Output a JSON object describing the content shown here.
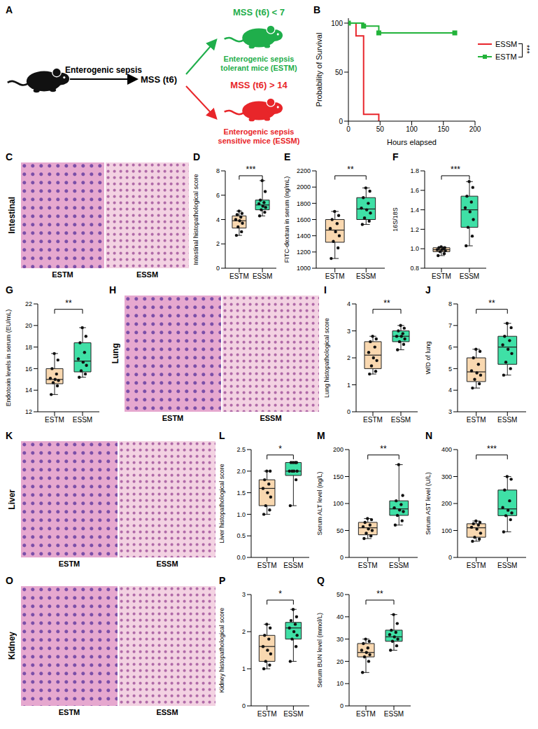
{
  "diagram": {
    "panel": "A",
    "start_label": "Enterogenic sepsis",
    "score_label": "MSS (t6)",
    "outcomes": [
      {
        "criterion": "MSS (t6) < 7",
        "name_lines": [
          "Enterogenic sepsis",
          "tolerant mice (ESTM)"
        ],
        "color": "#1fae4b"
      },
      {
        "criterion": "MSS (t6) > 14",
        "name_lines": [
          "Enterogenic sepsis",
          "sensitive mice (ESSM)"
        ],
        "color": "#e8262a"
      }
    ]
  },
  "images": [
    {
      "panel": "C",
      "tissue": "Intestinal",
      "captions": [
        "ESTM",
        "ESSM"
      ]
    },
    {
      "panel": "H",
      "tissue": "Lung",
      "captions": [
        "ESTM",
        "ESSM"
      ]
    },
    {
      "panel": "K",
      "tissue": "Liver",
      "captions": [
        "ESTM",
        "ESSM"
      ]
    },
    {
      "panel": "O",
      "tissue": "Kidney",
      "captions": [
        "ESTM",
        "ESSM"
      ]
    }
  ],
  "chart_data": [
    {
      "panel": "B",
      "type": "line",
      "x_label": "Hours elapsed",
      "y_label": "Probability of Survival",
      "xlim": [
        0,
        200
      ],
      "xticks": [
        0,
        50,
        100,
        150,
        200
      ],
      "ylim": [
        0,
        105
      ],
      "yticks": [
        0,
        50,
        100
      ],
      "legend": "right",
      "significance": "***",
      "series": [
        {
          "name": "ESSM",
          "color": "#e8252b",
          "line_style": "step",
          "x": [
            0,
            12,
            24,
            48
          ],
          "values": [
            100,
            87,
            7,
            0
          ]
        },
        {
          "name": "ESTM",
          "color": "#22b33a",
          "line_style": "step",
          "marker": "square",
          "x": [
            0,
            24,
            48,
            168
          ],
          "values": [
            100,
            97,
            90,
            90
          ]
        }
      ]
    },
    {
      "panel": "D",
      "type": "box",
      "y_label": "Intestinal histopathological score",
      "ylim": [
        0,
        8
      ],
      "yticks": [
        0,
        2,
        4,
        6,
        8
      ],
      "significance": "***",
      "groups": [
        {
          "name": "ESTM",
          "color": "#f9d8b0",
          "min": 2.7,
          "q1": 3.3,
          "median": 3.9,
          "q3": 4.3,
          "max": 4.7,
          "points": [
            2.7,
            3.0,
            3.4,
            3.7,
            3.9,
            4.0,
            4.2,
            4.4,
            4.5,
            4.7
          ]
        },
        {
          "name": "ESSM",
          "color": "#3fe0a6",
          "min": 4.3,
          "q1": 4.8,
          "median": 5.2,
          "q3": 5.6,
          "max": 7.2,
          "points": [
            4.3,
            4.6,
            4.8,
            5.0,
            5.1,
            5.3,
            5.4,
            5.6,
            6.3,
            7.2
          ]
        }
      ]
    },
    {
      "panel": "E",
      "type": "box",
      "y_label": "FITC-dextran in serum (ng/mL)",
      "ylim": [
        1000,
        2200
      ],
      "yticks": [
        1000,
        1200,
        1400,
        1600,
        1800,
        2000,
        2200
      ],
      "significance": "**",
      "groups": [
        {
          "name": "ESTM",
          "color": "#f9d8b0",
          "min": 1120,
          "q1": 1320,
          "median": 1470,
          "q3": 1600,
          "max": 1700,
          "points": [
            1120,
            1250,
            1330,
            1400,
            1450,
            1490,
            1550,
            1600,
            1650,
            1700
          ]
        },
        {
          "name": "ESSM",
          "color": "#3fe0a6",
          "min": 1540,
          "q1": 1600,
          "median": 1730,
          "q3": 1870,
          "max": 1990,
          "points": [
            1540,
            1580,
            1620,
            1680,
            1720,
            1740,
            1800,
            1870,
            1950,
            1990
          ]
        }
      ]
    },
    {
      "panel": "F",
      "type": "box",
      "y_label": "16S/18S",
      "ylim": [
        0.8,
        1.8
      ],
      "yticks": [
        0.8,
        {
          "value": 1,
          "label": "1.0"
        },
        1.2,
        1.4,
        1.6,
        1.8
      ],
      "significance": "***",
      "groups": [
        {
          "name": "ESTM",
          "color": "#f9d8b0",
          "min": 0.93,
          "q1": 0.97,
          "median": 0.99,
          "q3": 1.01,
          "max": 1.02,
          "points": [
            0.93,
            0.95,
            0.97,
            0.98,
            0.99,
            0.99,
            1.0,
            1.01,
            1.01,
            1.02
          ]
        },
        {
          "name": "ESSM",
          "color": "#3fe0a6",
          "min": 1.03,
          "q1": 1.22,
          "median": 1.4,
          "q3": 1.54,
          "max": 1.69,
          "points": [
            1.03,
            1.13,
            1.22,
            1.3,
            1.38,
            1.42,
            1.48,
            1.54,
            1.63,
            1.69
          ]
        }
      ]
    },
    {
      "panel": "G",
      "type": "box",
      "y_label": "Endotoxin levels in serum (EU/mL)",
      "ylim": [
        12,
        22
      ],
      "yticks": [
        12,
        14,
        16,
        18,
        20,
        22
      ],
      "significance": "**",
      "groups": [
        {
          "name": "ESTM",
          "color": "#f9d8b0",
          "min": 13.6,
          "q1": 14.6,
          "median": 15.0,
          "q3": 16.0,
          "max": 17.4,
          "points": [
            13.6,
            14.4,
            14.7,
            14.9,
            15.0,
            15.1,
            15.5,
            16.0,
            16.8,
            17.4
          ]
        },
        {
          "name": "ESSM",
          "color": "#3fe0a6",
          "min": 15.2,
          "q1": 15.7,
          "median": 16.7,
          "q3": 18.4,
          "max": 19.8,
          "points": [
            15.2,
            15.5,
            15.8,
            16.3,
            16.6,
            16.9,
            17.5,
            18.4,
            19.0,
            19.8
          ]
        }
      ]
    },
    {
      "panel": "I",
      "type": "box",
      "y_label": "Lung histopathological score",
      "ylim": [
        0,
        4
      ],
      "yticks": [
        0,
        1,
        2,
        3,
        4
      ],
      "significance": "**",
      "groups": [
        {
          "name": "ESTM",
          "color": "#f9d8b0",
          "min": 1.4,
          "q1": 1.6,
          "median": 2.1,
          "q3": 2.6,
          "max": 2.8,
          "points": [
            1.4,
            1.5,
            1.7,
            1.9,
            2.0,
            2.2,
            2.4,
            2.6,
            2.7,
            2.8
          ]
        },
        {
          "name": "ESSM",
          "color": "#3fe0a6",
          "min": 2.3,
          "q1": 2.6,
          "median": 2.8,
          "q3": 3.0,
          "max": 3.2,
          "points": [
            2.3,
            2.5,
            2.6,
            2.7,
            2.8,
            2.8,
            2.9,
            3.0,
            3.1,
            3.2
          ]
        }
      ]
    },
    {
      "panel": "J",
      "type": "box",
      "y_label": "W/D of lung",
      "ylim": [
        3,
        8
      ],
      "yticks": [
        3,
        4,
        5,
        6,
        7,
        8
      ],
      "significance": "**",
      "groups": [
        {
          "name": "ESTM",
          "color": "#f9d8b0",
          "min": 4.1,
          "q1": 4.4,
          "median": 4.85,
          "q3": 5.5,
          "max": 5.9,
          "points": [
            4.1,
            4.3,
            4.5,
            4.7,
            4.8,
            4.9,
            5.2,
            5.5,
            5.8,
            5.9
          ]
        },
        {
          "name": "ESSM",
          "color": "#3fe0a6",
          "min": 4.7,
          "q1": 5.2,
          "median": 6.0,
          "q3": 6.5,
          "max": 7.1,
          "points": [
            4.7,
            5.0,
            5.3,
            5.7,
            5.9,
            6.1,
            6.3,
            6.5,
            6.9,
            7.1
          ]
        }
      ]
    },
    {
      "panel": "L",
      "type": "box",
      "y_label": "Liver histopathological score",
      "ylim": [
        0,
        2.5
      ],
      "yticks": [
        {
          "value": 0,
          "label": "0.0"
        },
        0.5,
        {
          "value": 1,
          "label": "1.0"
        },
        1.5,
        {
          "value": 2,
          "label": "2.0"
        },
        2.5
      ],
      "significance": "*",
      "groups": [
        {
          "name": "ESTM",
          "color": "#f9d8b0",
          "min": 1.0,
          "q1": 1.2,
          "median": 1.6,
          "q3": 1.8,
          "max": 2.0,
          "points": [
            1.0,
            1.1,
            1.2,
            1.4,
            1.5,
            1.6,
            1.7,
            1.8,
            2.0,
            2.0
          ]
        },
        {
          "name": "ESSM",
          "color": "#3fe0a6",
          "min": 1.2,
          "q1": 1.9,
          "median": 2.0,
          "q3": 2.2,
          "max": 2.2,
          "points": [
            1.2,
            1.8,
            2.0,
            2.0,
            2.0,
            2.0,
            2.2,
            2.2,
            2.2,
            2.2
          ]
        }
      ]
    },
    {
      "panel": "M",
      "type": "box",
      "y_label": "Serum ALT level (ng/L)",
      "ylim": [
        0,
        200
      ],
      "yticks": [
        0,
        50,
        100,
        150,
        200
      ],
      "significance": "**",
      "groups": [
        {
          "name": "ESTM",
          "color": "#f9d8b0",
          "min": 35,
          "q1": 42,
          "median": 55,
          "q3": 65,
          "max": 72,
          "points": [
            35,
            40,
            45,
            50,
            53,
            57,
            60,
            65,
            70,
            72
          ]
        },
        {
          "name": "ESSM",
          "color": "#3fe0a6",
          "min": 60,
          "q1": 78,
          "median": 90,
          "q3": 105,
          "max": 172,
          "points": [
            60,
            68,
            78,
            85,
            88,
            92,
            98,
            105,
            115,
            172
          ]
        }
      ]
    },
    {
      "panel": "N",
      "type": "box",
      "y_label": "Serum AST level (U/L)",
      "ylim": [
        0,
        400
      ],
      "yticks": [
        0,
        100,
        200,
        300,
        400
      ],
      "significance": "***",
      "groups": [
        {
          "name": "ESTM",
          "color": "#f9d8b0",
          "min": 60,
          "q1": 75,
          "median": 110,
          "q3": 125,
          "max": 135,
          "points": [
            60,
            68,
            75,
            90,
            105,
            112,
            120,
            125,
            130,
            135
          ]
        },
        {
          "name": "ESSM",
          "color": "#3fe0a6",
          "min": 95,
          "q1": 155,
          "median": 180,
          "q3": 250,
          "max": 300,
          "points": [
            95,
            140,
            155,
            165,
            175,
            185,
            210,
            250,
            290,
            300
          ]
        }
      ]
    },
    {
      "panel": "P",
      "type": "box",
      "y_label": "Kidney histopathological score",
      "ylim": [
        0,
        3
      ],
      "yticks": [
        0,
        1,
        2,
        3
      ],
      "significance": "*",
      "groups": [
        {
          "name": "ESTM",
          "color": "#f9d8b0",
          "min": 1.0,
          "q1": 1.2,
          "median": 1.6,
          "q3": 1.9,
          "max": 2.2,
          "points": [
            1.0,
            1.1,
            1.2,
            1.4,
            1.5,
            1.6,
            1.8,
            1.9,
            2.1,
            2.2
          ]
        },
        {
          "name": "ESSM",
          "color": "#3fe0a6",
          "min": 1.2,
          "q1": 1.8,
          "median": 2.1,
          "q3": 2.25,
          "max": 2.6,
          "points": [
            1.2,
            1.6,
            1.8,
            1.9,
            2.0,
            2.1,
            2.2,
            2.3,
            2.4,
            2.6
          ]
        }
      ]
    },
    {
      "panel": "Q",
      "type": "box",
      "y_label": "Serum BUN level (mmol/L)",
      "ylim": [
        0,
        50
      ],
      "yticks": [
        0,
        10,
        20,
        30,
        40,
        50
      ],
      "significance": "**",
      "groups": [
        {
          "name": "ESTM",
          "color": "#f9d8b0",
          "min": 15,
          "q1": 22,
          "median": 24,
          "q3": 28,
          "max": 30,
          "points": [
            15,
            20,
            22,
            23,
            24,
            25,
            26,
            28,
            29,
            30
          ]
        },
        {
          "name": "ESSM",
          "color": "#3fe0a6",
          "min": 25,
          "q1": 29,
          "median": 31,
          "q3": 34,
          "max": 41,
          "points": [
            25,
            27,
            29,
            30,
            31,
            32,
            33,
            34,
            37,
            41
          ]
        }
      ]
    }
  ]
}
